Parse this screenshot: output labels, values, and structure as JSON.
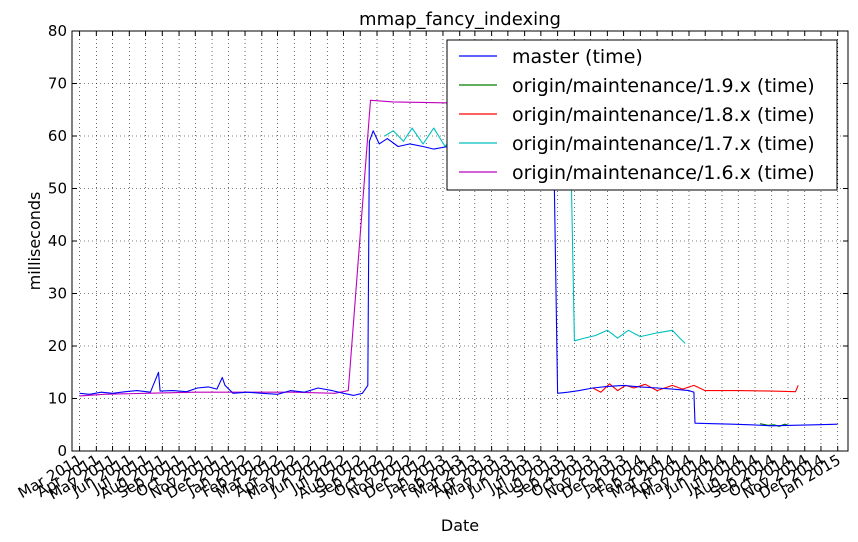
{
  "chart_data": {
    "type": "line",
    "title": "mmap_fancy_indexing",
    "xlabel": "Date",
    "ylabel": "milliseconds",
    "ylim": [
      0,
      80
    ],
    "xlim": [
      "2011-02-15",
      "2015-01-20"
    ],
    "grid": true,
    "legend_position": "top-right",
    "y_ticks": [
      0,
      10,
      20,
      30,
      40,
      50,
      60,
      70,
      80
    ],
    "x_ticks": [
      {
        "label": "Mar 2011",
        "date": "2011-03-01"
      },
      {
        "label": "Apr 2011",
        "date": "2011-04-01"
      },
      {
        "label": "May 2011",
        "date": "2011-05-01"
      },
      {
        "label": "Jun 2011",
        "date": "2011-06-01"
      },
      {
        "label": "Jul 2011",
        "date": "2011-07-01"
      },
      {
        "label": "Aug 2011",
        "date": "2011-08-01"
      },
      {
        "label": "Sep 2011",
        "date": "2011-09-01"
      },
      {
        "label": "Oct 2011",
        "date": "2011-10-01"
      },
      {
        "label": "Nov 2011",
        "date": "2011-11-01"
      },
      {
        "label": "Dec 2011",
        "date": "2011-12-01"
      },
      {
        "label": "Jan 2012",
        "date": "2012-01-01"
      },
      {
        "label": "Feb 2012",
        "date": "2012-02-01"
      },
      {
        "label": "Mar 2012",
        "date": "2012-03-01"
      },
      {
        "label": "Apr 2012",
        "date": "2012-04-01"
      },
      {
        "label": "May 2012",
        "date": "2012-05-01"
      },
      {
        "label": "Jun 2012",
        "date": "2012-06-01"
      },
      {
        "label": "Jul 2012",
        "date": "2012-07-01"
      },
      {
        "label": "Aug 2012",
        "date": "2012-08-01"
      },
      {
        "label": "Sep 2012",
        "date": "2012-09-01"
      },
      {
        "label": "Oct 2012",
        "date": "2012-10-01"
      },
      {
        "label": "Nov 2012",
        "date": "2012-11-01"
      },
      {
        "label": "Dec 2012",
        "date": "2012-12-01"
      },
      {
        "label": "Jan 2013",
        "date": "2013-01-01"
      },
      {
        "label": "Feb 2013",
        "date": "2013-02-01"
      },
      {
        "label": "Mar 2013",
        "date": "2013-03-01"
      },
      {
        "label": "Apr 2013",
        "date": "2013-04-01"
      },
      {
        "label": "May 2013",
        "date": "2013-05-01"
      },
      {
        "label": "Jun 2013",
        "date": "2013-06-01"
      },
      {
        "label": "Jul 2013",
        "date": "2013-07-01"
      },
      {
        "label": "Aug 2013",
        "date": "2013-08-01"
      },
      {
        "label": "Sep 2013",
        "date": "2013-09-01"
      },
      {
        "label": "Oct 2013",
        "date": "2013-10-01"
      },
      {
        "label": "Nov 2013",
        "date": "2013-11-01"
      },
      {
        "label": "Dec 2013",
        "date": "2013-12-01"
      },
      {
        "label": "Jan 2014",
        "date": "2014-01-01"
      },
      {
        "label": "Feb 2014",
        "date": "2014-02-01"
      },
      {
        "label": "Mar 2014",
        "date": "2014-03-01"
      },
      {
        "label": "Apr 2014",
        "date": "2014-04-01"
      },
      {
        "label": "May 2014",
        "date": "2014-05-01"
      },
      {
        "label": "Jun 2014",
        "date": "2014-06-01"
      },
      {
        "label": "Jul 2014",
        "date": "2014-07-01"
      },
      {
        "label": "Aug 2014",
        "date": "2014-08-01"
      },
      {
        "label": "Sep 2014",
        "date": "2014-09-01"
      },
      {
        "label": "Oct 2014",
        "date": "2014-10-01"
      },
      {
        "label": "Nov 2014",
        "date": "2014-11-01"
      },
      {
        "label": "Dec 2014",
        "date": "2014-12-01"
      },
      {
        "label": "Jan 2015",
        "date": "2015-01-01"
      }
    ],
    "series": [
      {
        "name": "master (time)",
        "color": "#0000ff",
        "points": [
          [
            "2011-03-01",
            11
          ],
          [
            "2011-03-20",
            10.8
          ],
          [
            "2011-04-10",
            11.2
          ],
          [
            "2011-05-01",
            11
          ],
          [
            "2011-05-25",
            11.3
          ],
          [
            "2011-06-15",
            11.5
          ],
          [
            "2011-07-10",
            11.2
          ],
          [
            "2011-07-25",
            15
          ],
          [
            "2011-07-28",
            11.4
          ],
          [
            "2011-08-20",
            11.5
          ],
          [
            "2011-09-15",
            11.3
          ],
          [
            "2011-10-05",
            12
          ],
          [
            "2011-10-25",
            12.2
          ],
          [
            "2011-11-10",
            11.8
          ],
          [
            "2011-11-20",
            14
          ],
          [
            "2011-11-25",
            12.5
          ],
          [
            "2011-12-10",
            11
          ],
          [
            "2012-01-05",
            11.2
          ],
          [
            "2012-02-01",
            11
          ],
          [
            "2012-03-01",
            10.8
          ],
          [
            "2012-03-25",
            11.5
          ],
          [
            "2012-04-20",
            11.2
          ],
          [
            "2012-05-15",
            12
          ],
          [
            "2012-06-10",
            11.5
          ],
          [
            "2012-07-01",
            11
          ],
          [
            "2012-07-20",
            10.6
          ],
          [
            "2012-08-05",
            11
          ],
          [
            "2012-08-15",
            12.5
          ],
          [
            "2012-08-18",
            59
          ],
          [
            "2012-08-25",
            61
          ],
          [
            "2012-09-05",
            58.5
          ],
          [
            "2012-09-20",
            59.5
          ],
          [
            "2012-10-10",
            58
          ],
          [
            "2012-11-01",
            58.5
          ],
          [
            "2012-11-25",
            58
          ],
          [
            "2012-12-15",
            57.5
          ],
          [
            "2013-01-10",
            58
          ],
          [
            "2013-01-30",
            57.5
          ],
          [
            "2013-02-12",
            59
          ],
          [
            "2013-02-20",
            57.5
          ],
          [
            "2013-05-15",
            57.5
          ],
          [
            "2013-07-10",
            57.5
          ],
          [
            "2013-07-25",
            57
          ],
          [
            "2013-08-01",
            11
          ],
          [
            "2013-08-20",
            11.2
          ],
          [
            "2013-09-10",
            11.5
          ],
          [
            "2013-10-05",
            12
          ],
          [
            "2013-11-01",
            12.3
          ],
          [
            "2013-12-01",
            12.5
          ],
          [
            "2014-01-01",
            12.2
          ],
          [
            "2014-02-01",
            12
          ],
          [
            "2014-03-01",
            11.8
          ],
          [
            "2014-04-01",
            11.5
          ],
          [
            "2014-04-10",
            11.2
          ],
          [
            "2014-04-12",
            5.3
          ],
          [
            "2014-05-15",
            5.2
          ],
          [
            "2014-06-20",
            5.1
          ],
          [
            "2014-07-25",
            5
          ],
          [
            "2014-09-01",
            4.8
          ],
          [
            "2014-10-10",
            4.9
          ],
          [
            "2014-11-20",
            5
          ],
          [
            "2015-01-01",
            5.1
          ]
        ]
      },
      {
        "name": "origin/maintenance/1.9.x (time)",
        "color": "#008000",
        "points": [
          [
            "2014-08-10",
            5.2
          ],
          [
            "2014-08-25",
            4.9
          ],
          [
            "2014-09-05",
            5
          ],
          [
            "2014-09-15",
            4.7
          ],
          [
            "2014-09-25",
            5.1
          ],
          [
            "2014-10-01",
            4.9
          ]
        ]
      },
      {
        "name": "origin/maintenance/1.8.x (time)",
        "color": "#ff0000",
        "points": [
          [
            "2013-10-05",
            12
          ],
          [
            "2013-10-20",
            11.2
          ],
          [
            "2013-11-05",
            12.8
          ],
          [
            "2013-11-20",
            11.5
          ],
          [
            "2013-12-05",
            12.5
          ],
          [
            "2013-12-20",
            12
          ],
          [
            "2014-01-10",
            12.7
          ],
          [
            "2014-02-01",
            11.5
          ],
          [
            "2014-03-01",
            12.5
          ],
          [
            "2014-03-20",
            11.8
          ],
          [
            "2014-04-10",
            12.5
          ],
          [
            "2014-05-01",
            11.5
          ],
          [
            "2014-07-01",
            11.5
          ],
          [
            "2014-09-01",
            11.4
          ],
          [
            "2014-10-15",
            11.3
          ],
          [
            "2014-10-20",
            12.5
          ]
        ]
      },
      {
        "name": "origin/maintenance/1.7.x (time)",
        "color": "#00bfbf",
        "points": [
          [
            "2012-09-15",
            60
          ],
          [
            "2012-10-01",
            61
          ],
          [
            "2012-10-20",
            59
          ],
          [
            "2012-11-05",
            61.5
          ],
          [
            "2012-11-25",
            58.5
          ],
          [
            "2012-12-15",
            61.5
          ],
          [
            "2013-01-05",
            58
          ],
          [
            "2013-01-25",
            61
          ],
          [
            "2013-02-10",
            58
          ],
          [
            "2013-02-20",
            61
          ],
          [
            "2013-08-25",
            59
          ],
          [
            "2013-09-01",
            21
          ],
          [
            "2013-09-20",
            21.5
          ],
          [
            "2013-10-10",
            22
          ],
          [
            "2013-11-01",
            23
          ],
          [
            "2013-11-20",
            21.5
          ],
          [
            "2013-12-10",
            23
          ],
          [
            "2014-01-01",
            21.8
          ],
          [
            "2014-02-01",
            22.5
          ],
          [
            "2014-03-01",
            23
          ],
          [
            "2014-03-15",
            21.5
          ],
          [
            "2014-03-25",
            20.5
          ]
        ]
      },
      {
        "name": "origin/maintenance/1.6.x (time)",
        "color": "#bf00bf",
        "points": [
          [
            "2011-03-01",
            10.5
          ],
          [
            "2011-04-15",
            10.8
          ],
          [
            "2011-07-01",
            11
          ],
          [
            "2011-10-01",
            11.2
          ],
          [
            "2012-01-01",
            11.2
          ],
          [
            "2012-04-01",
            11.2
          ],
          [
            "2012-06-15",
            11
          ],
          [
            "2012-07-10",
            11.5
          ],
          [
            "2012-08-20",
            66.8
          ],
          [
            "2012-10-01",
            66.5
          ],
          [
            "2013-01-15",
            66.3
          ],
          [
            "2013-02-10",
            66.5
          ]
        ]
      }
    ]
  }
}
